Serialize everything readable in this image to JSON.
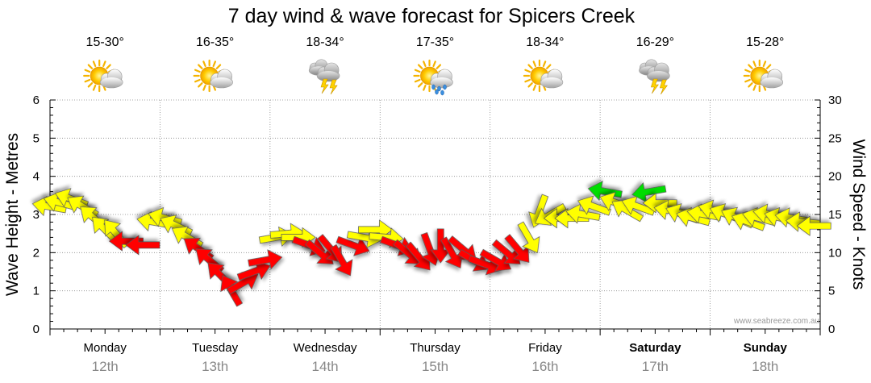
{
  "chart_data": {
    "type": "line",
    "title": "7 day wind & wave forecast for Spicers Creek",
    "ylabel_left": "Wave Height - Metres",
    "ylabel_right": "Wind Speed - Knots",
    "ylim_left": [
      0,
      6
    ],
    "ylim_right": [
      0,
      30
    ],
    "yticks_left": [
      "0",
      "1",
      "2",
      "3",
      "4",
      "5",
      "6"
    ],
    "yticks_right": [
      "0",
      "5",
      "10",
      "15",
      "20",
      "25",
      "30"
    ],
    "grid": true,
    "credit": "www.seabreeze.com.au",
    "days": [
      {
        "name": "Monday",
        "date": "12th",
        "bold": false,
        "temp": "15-30°",
        "weather_icon": "sun-cloud-icon"
      },
      {
        "name": "Tuesday",
        "date": "13th",
        "bold": false,
        "temp": "16-35°",
        "weather_icon": "sun-cloud-icon"
      },
      {
        "name": "Wednesday",
        "date": "14th",
        "bold": false,
        "temp": "18-34°",
        "weather_icon": "storm-cloud-icon"
      },
      {
        "name": "Thursday",
        "date": "15th",
        "bold": false,
        "temp": "17-35°",
        "weather_icon": "sun-rain-icon"
      },
      {
        "name": "Friday",
        "date": "16th",
        "bold": false,
        "temp": "18-34°",
        "weather_icon": "sun-cloud-icon"
      },
      {
        "name": "Saturday",
        "date": "17th",
        "bold": true,
        "temp": "16-29°",
        "weather_icon": "storm-cloud-icon"
      },
      {
        "name": "Sunday",
        "date": "18th",
        "bold": true,
        "temp": "15-28°",
        "weather_icon": "sun-cloud-icon"
      }
    ],
    "series": [
      {
        "name": "Wind Speed (knots)",
        "colors": {
          "light": "#ffff00",
          "moderate": "#ff0000",
          "strong": "#00dd00"
        },
        "points": [
          {
            "t": 0.0,
            "knots": 16.0,
            "dir_deg": 10,
            "level": "light"
          },
          {
            "t": 0.1,
            "knots": 16.5,
            "dir_deg": 15,
            "level": "light"
          },
          {
            "t": 0.2,
            "knots": 17.0,
            "dir_deg": 20,
            "level": "light"
          },
          {
            "t": 0.3,
            "knots": 16.0,
            "dir_deg": 30,
            "level": "light"
          },
          {
            "t": 0.4,
            "knots": 14.5,
            "dir_deg": 40,
            "level": "light"
          },
          {
            "t": 0.5,
            "knots": 13.0,
            "dir_deg": 45,
            "level": "light"
          },
          {
            "t": 0.6,
            "knots": 12.5,
            "dir_deg": 50,
            "level": "light"
          },
          {
            "t": 0.7,
            "knots": 11.5,
            "dir_deg": 0,
            "level": "moderate"
          },
          {
            "t": 0.85,
            "knots": 11.0,
            "dir_deg": 0,
            "level": "moderate"
          },
          {
            "t": 0.95,
            "knots": 14.0,
            "dir_deg": 10,
            "level": "light"
          },
          {
            "t": 1.05,
            "knots": 14.5,
            "dir_deg": 15,
            "level": "light"
          },
          {
            "t": 1.15,
            "knots": 13.5,
            "dir_deg": 25,
            "level": "light"
          },
          {
            "t": 1.25,
            "knots": 12.0,
            "dir_deg": 30,
            "level": "light"
          },
          {
            "t": 1.35,
            "knots": 10.5,
            "dir_deg": 35,
            "level": "moderate"
          },
          {
            "t": 1.45,
            "knots": 9.0,
            "dir_deg": 40,
            "level": "moderate"
          },
          {
            "t": 1.55,
            "knots": 7.0,
            "dir_deg": 45,
            "level": "moderate"
          },
          {
            "t": 1.65,
            "knots": 5.0,
            "dir_deg": 60,
            "level": "moderate"
          },
          {
            "t": 1.75,
            "knots": 6.0,
            "dir_deg": 150,
            "level": "moderate"
          },
          {
            "t": 1.85,
            "knots": 7.5,
            "dir_deg": 160,
            "level": "moderate"
          },
          {
            "t": 1.95,
            "knots": 9.0,
            "dir_deg": 170,
            "level": "moderate"
          },
          {
            "t": 2.05,
            "knots": 12.0,
            "dir_deg": 170,
            "level": "light"
          },
          {
            "t": 2.15,
            "knots": 12.5,
            "dir_deg": 175,
            "level": "light"
          },
          {
            "t": 2.25,
            "knots": 12.0,
            "dir_deg": 180,
            "level": "light"
          },
          {
            "t": 2.35,
            "knots": 11.0,
            "dir_deg": 200,
            "level": "moderate"
          },
          {
            "t": 2.45,
            "knots": 10.0,
            "dir_deg": 220,
            "level": "moderate"
          },
          {
            "t": 2.55,
            "knots": 10.5,
            "dir_deg": 230,
            "level": "moderate"
          },
          {
            "t": 2.65,
            "knots": 9.0,
            "dir_deg": 240,
            "level": "moderate"
          },
          {
            "t": 2.75,
            "knots": 11.0,
            "dir_deg": 200,
            "level": "moderate"
          },
          {
            "t": 2.85,
            "knots": 12.0,
            "dir_deg": 190,
            "level": "light"
          },
          {
            "t": 2.95,
            "knots": 13.0,
            "dir_deg": 180,
            "level": "light"
          },
          {
            "t": 3.05,
            "knots": 12.0,
            "dir_deg": 185,
            "level": "light"
          },
          {
            "t": 3.15,
            "knots": 11.0,
            "dir_deg": 200,
            "level": "moderate"
          },
          {
            "t": 3.25,
            "knots": 10.0,
            "dir_deg": 220,
            "level": "moderate"
          },
          {
            "t": 3.35,
            "knots": 9.5,
            "dir_deg": 230,
            "level": "moderate"
          },
          {
            "t": 3.45,
            "knots": 10.5,
            "dir_deg": 250,
            "level": "moderate"
          },
          {
            "t": 3.55,
            "knots": 11.0,
            "dir_deg": 270,
            "level": "moderate"
          },
          {
            "t": 3.65,
            "knots": 10.0,
            "dir_deg": 240,
            "level": "moderate"
          },
          {
            "t": 3.75,
            "knots": 10.5,
            "dir_deg": 220,
            "level": "moderate"
          },
          {
            "t": 3.85,
            "knots": 9.0,
            "dir_deg": 210,
            "level": "moderate"
          },
          {
            "t": 3.95,
            "knots": 8.5,
            "dir_deg": 200,
            "level": "moderate"
          },
          {
            "t": 4.05,
            "knots": 9.0,
            "dir_deg": 210,
            "level": "moderate"
          },
          {
            "t": 4.15,
            "knots": 10.0,
            "dir_deg": 220,
            "level": "moderate"
          },
          {
            "t": 4.25,
            "knots": 10.5,
            "dir_deg": 230,
            "level": "moderate"
          },
          {
            "t": 4.35,
            "knots": 12.0,
            "dir_deg": 240,
            "level": "light"
          },
          {
            "t": 4.45,
            "knots": 15.5,
            "dir_deg": 290,
            "level": "light"
          },
          {
            "t": 4.55,
            "knots": 15.0,
            "dir_deg": 330,
            "level": "light"
          },
          {
            "t": 4.65,
            "knots": 14.5,
            "dir_deg": 0,
            "level": "light"
          },
          {
            "t": 4.75,
            "knots": 14.5,
            "dir_deg": 0,
            "level": "light"
          },
          {
            "t": 4.85,
            "knots": 15.0,
            "dir_deg": 10,
            "level": "light"
          },
          {
            "t": 4.95,
            "knots": 16.0,
            "dir_deg": 20,
            "level": "light"
          },
          {
            "t": 5.05,
            "knots": 18.0,
            "dir_deg": 10,
            "level": "strong"
          },
          {
            "t": 5.15,
            "knots": 16.5,
            "dir_deg": 20,
            "level": "light"
          },
          {
            "t": 5.25,
            "knots": 15.5,
            "dir_deg": 30,
            "level": "light"
          },
          {
            "t": 5.35,
            "knots": 16.0,
            "dir_deg": 20,
            "level": "light"
          },
          {
            "t": 5.45,
            "knots": 18.0,
            "dir_deg": 350,
            "level": "strong"
          },
          {
            "t": 5.55,
            "knots": 16.5,
            "dir_deg": 0,
            "level": "light"
          },
          {
            "t": 5.65,
            "knots": 15.5,
            "dir_deg": 10,
            "level": "light"
          },
          {
            "t": 5.75,
            "knots": 15.0,
            "dir_deg": 20,
            "level": "light"
          },
          {
            "t": 5.85,
            "knots": 14.5,
            "dir_deg": 15,
            "level": "light"
          },
          {
            "t": 5.95,
            "knots": 15.0,
            "dir_deg": 10,
            "level": "light"
          },
          {
            "t": 6.05,
            "knots": 15.5,
            "dir_deg": 15,
            "level": "light"
          },
          {
            "t": 6.15,
            "knots": 15.0,
            "dir_deg": 20,
            "level": "light"
          },
          {
            "t": 6.25,
            "knots": 14.5,
            "dir_deg": 25,
            "level": "light"
          },
          {
            "t": 6.35,
            "knots": 14.0,
            "dir_deg": 20,
            "level": "light"
          },
          {
            "t": 6.45,
            "knots": 14.5,
            "dir_deg": 15,
            "level": "light"
          },
          {
            "t": 6.55,
            "knots": 15.0,
            "dir_deg": 10,
            "level": "light"
          },
          {
            "t": 6.65,
            "knots": 14.5,
            "dir_deg": 15,
            "level": "light"
          },
          {
            "t": 6.75,
            "knots": 14.5,
            "dir_deg": 10,
            "level": "light"
          },
          {
            "t": 6.85,
            "knots": 14.0,
            "dir_deg": 5,
            "level": "light"
          },
          {
            "t": 6.95,
            "knots": 13.5,
            "dir_deg": 0,
            "level": "light"
          }
        ]
      }
    ]
  }
}
